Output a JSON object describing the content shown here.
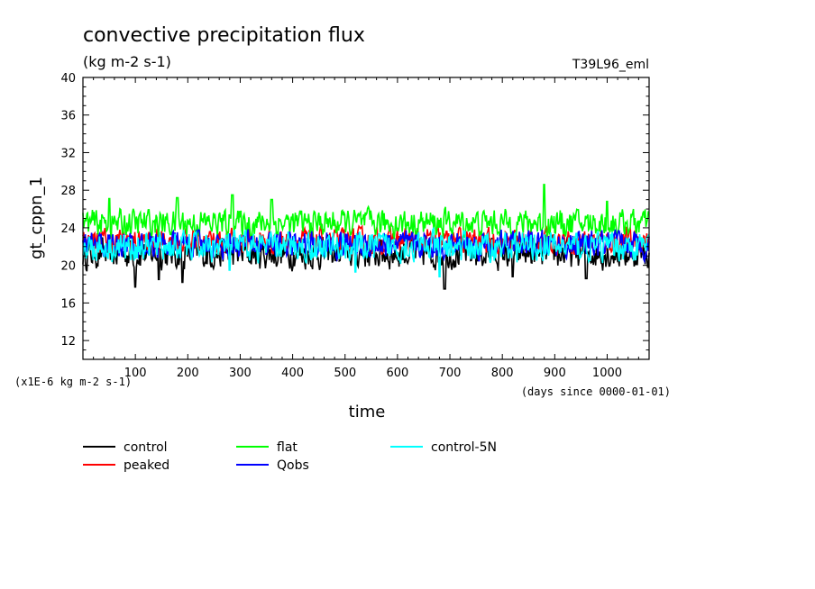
{
  "chart_data": {
    "type": "line",
    "title": "convective precipitation flux",
    "subtitle": "(kg m-2 s-1)",
    "run_label": "T39L96_eml",
    "ylabel": "gt_cppn_1",
    "xlabel": "time",
    "y_units_note": "(x1E-6 kg m-2 s-1)",
    "x_units_note": "(days since 0000-01-01)",
    "xlim": [
      0,
      1080
    ],
    "ylim": [
      10,
      40
    ],
    "x_ticks": [
      100,
      200,
      300,
      400,
      500,
      600,
      700,
      800,
      900,
      1000
    ],
    "x_tick_labels": [
      "100",
      "200",
      "300",
      "400",
      "500",
      "600",
      "700",
      "800",
      "900",
      "1000"
    ],
    "y_ticks": [
      12,
      16,
      20,
      24,
      28,
      32,
      36,
      40
    ],
    "y_tick_labels": [
      "12",
      "16",
      "20",
      "24",
      "28",
      "32",
      "36",
      "40"
    ],
    "grid": false,
    "legend_position": "below",
    "series": [
      {
        "name": "control",
        "color": "#000000",
        "mean": 21.3,
        "amplitude": 1.5,
        "minima": [
          [
            100,
            17.7
          ],
          [
            145,
            18.5
          ],
          [
            190,
            18.2
          ],
          [
            690,
            17.5
          ],
          [
            820,
            18.8
          ],
          [
            960,
            18.6
          ]
        ],
        "maxima": []
      },
      {
        "name": "peaked",
        "color": "#ff0000",
        "mean": 22.6,
        "amplitude": 1.2,
        "minima": [],
        "maxima": []
      },
      {
        "name": "flat",
        "color": "#00ff00",
        "mean": 24.5,
        "amplitude": 1.3,
        "minima": [],
        "maxima": [
          [
            50,
            27.1
          ],
          [
            180,
            27.2
          ],
          [
            285,
            27.5
          ],
          [
            360,
            27.0
          ],
          [
            880,
            28.6
          ],
          [
            1000,
            26.8
          ]
        ]
      },
      {
        "name": "Qobs",
        "color": "#0000ff",
        "mean": 22.2,
        "amplitude": 1.3,
        "minima": [],
        "maxima": []
      },
      {
        "name": "control-5N",
        "color": "#00ffff",
        "mean": 22.0,
        "amplitude": 1.4,
        "minima": [
          [
            280,
            19.5
          ],
          [
            520,
            19.3
          ],
          [
            680,
            18.8
          ]
        ],
        "maxima": []
      }
    ]
  }
}
